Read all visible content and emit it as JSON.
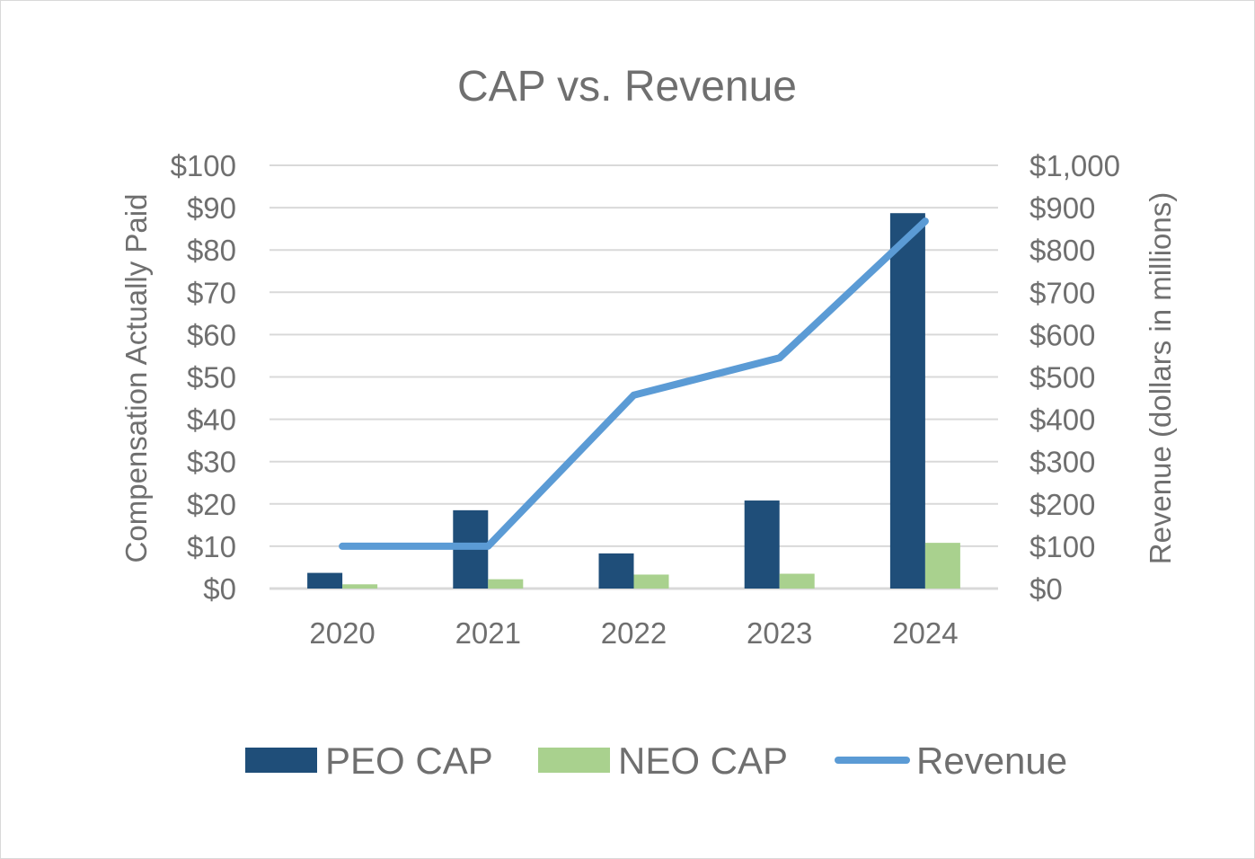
{
  "chart_data": {
    "type": "bar",
    "title": "CAP vs. Revenue",
    "categories": [
      "2020",
      "2021",
      "2022",
      "2023",
      "2024"
    ],
    "series": [
      {
        "name": "PEO CAP",
        "type": "bar",
        "axis": "left",
        "color": "#1f4e79",
        "values": [
          3.7,
          18.5,
          8.3,
          20.8,
          88.7
        ]
      },
      {
        "name": "NEO CAP",
        "type": "bar",
        "axis": "left",
        "color": "#a9d18e",
        "values": [
          1.0,
          2.2,
          3.3,
          3.5,
          10.8
        ]
      },
      {
        "name": "Revenue",
        "type": "line",
        "axis": "right",
        "color": "#5b9bd5",
        "values": [
          100,
          100,
          457,
          545,
          868
        ]
      }
    ],
    "left_axis": {
      "label": "Compensation Actually Paid",
      "ylim": [
        0,
        100
      ],
      "ticks": [
        "$0",
        "$10",
        "$20",
        "$30",
        "$40",
        "$50",
        "$60",
        "$70",
        "$80",
        "$90",
        "$100"
      ]
    },
    "right_axis": {
      "label": "Revenue (dollars in millions)",
      "ylim": [
        0,
        1000
      ],
      "ticks": [
        "$0",
        "$100",
        "$200",
        "$300",
        "$400",
        "$500",
        "$600",
        "$700",
        "$800",
        "$900",
        "$1,000"
      ]
    },
    "grid": true,
    "legend_position": "bottom"
  }
}
